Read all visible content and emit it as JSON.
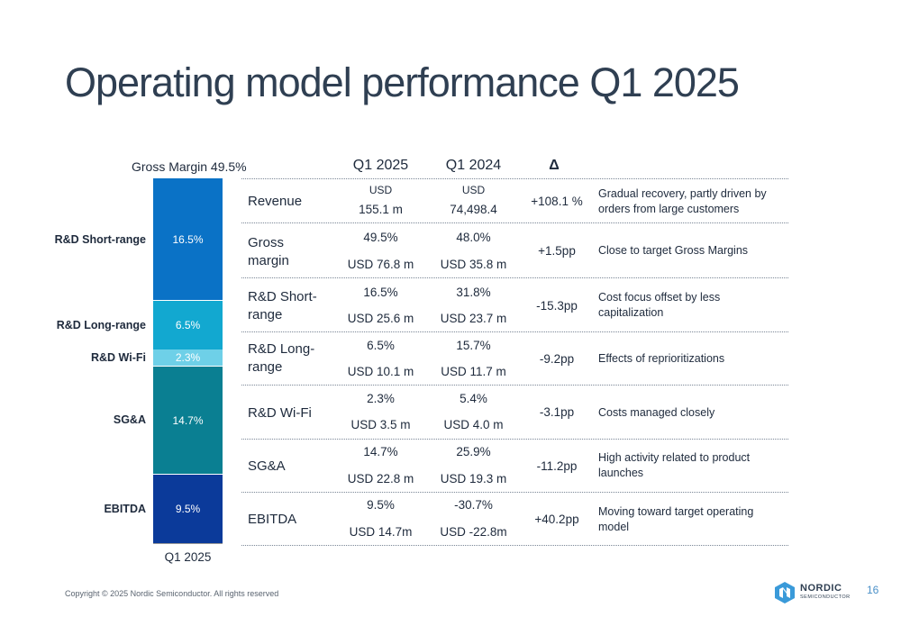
{
  "title": "Operating model performance Q1 2025",
  "bar": {
    "gross_margin_label": "Gross Margin 49.5%",
    "x_label": "Q1 2025",
    "segments": [
      {
        "label": "R&D Short-range",
        "value": "16.5%",
        "color": "#0a72c6"
      },
      {
        "label": "R&D Long-range",
        "value": "6.5%",
        "color": "#12a8d0"
      },
      {
        "label": "R&D Wi-Fi",
        "value": "2.3%",
        "color": "#6ed0e8"
      },
      {
        "label": "SG&A",
        "value": "14.7%",
        "color": "#0a7f92"
      },
      {
        "label": "EBITDA",
        "value": "9.5%",
        "color": "#0b3a9a"
      }
    ]
  },
  "table": {
    "headers": {
      "q1_2025": "Q1 2025",
      "q1_2024": "Q1 2024",
      "delta": "Δ"
    },
    "rows": [
      {
        "label": "Revenue",
        "q25_top": "USD",
        "q25_bottom": "155.1 m",
        "q24_top": "USD",
        "q24_bottom": "74,498.4",
        "delta": "+108.1 %",
        "comment": "Gradual recovery, partly driven by orders from large customers"
      },
      {
        "label": "Gross margin",
        "q25_top": "49.5%",
        "q25_bottom": "USD  76.8 m",
        "q24_top": "48.0%",
        "q24_bottom": "USD  35.8 m",
        "delta": "+1.5pp",
        "comment": "Close to target Gross Margins"
      },
      {
        "label": "R&D Short-range",
        "q25_top": "16.5%",
        "q25_bottom": "USD  25.6 m",
        "q24_top": "31.8%",
        "q24_bottom": "USD  23.7 m",
        "delta": "-15.3pp",
        "comment": "Cost focus offset by less capitalization"
      },
      {
        "label": "R&D Long-range",
        "q25_top": "6.5%",
        "q25_bottom": "USD  10.1 m",
        "q24_top": "15.7%",
        "q24_bottom": "USD  11.7 m",
        "delta": "-9.2pp",
        "comment": "Effects of reprioritizations"
      },
      {
        "label": "R&D Wi-Fi",
        "q25_top": "2.3%",
        "q25_bottom": "USD  3.5 m",
        "q24_top": "5.4%",
        "q24_bottom": "USD  4.0 m",
        "delta": "-3.1pp",
        "comment": "Costs managed closely"
      },
      {
        "label": "SG&A",
        "q25_top": "14.7%",
        "q25_bottom": "USD  22.8 m",
        "q24_top": "25.9%",
        "q24_bottom": "USD  19.3 m",
        "delta": "-11.2pp",
        "comment": "High activity related to product launches"
      },
      {
        "label": "EBITDA",
        "q25_top": "9.5%",
        "q25_bottom": "USD 14.7m",
        "q24_top": "-30.7%",
        "q24_bottom": "USD -22.8m",
        "delta": "+40.2pp",
        "comment": "Moving toward target operating model"
      }
    ]
  },
  "footer": {
    "copyright": "Copyright © 2025 Nordic Semiconductor. All rights reserved",
    "logo_word": "NORDIC",
    "logo_sub": "SEMICONDUCTOR",
    "page_number": "16"
  }
}
